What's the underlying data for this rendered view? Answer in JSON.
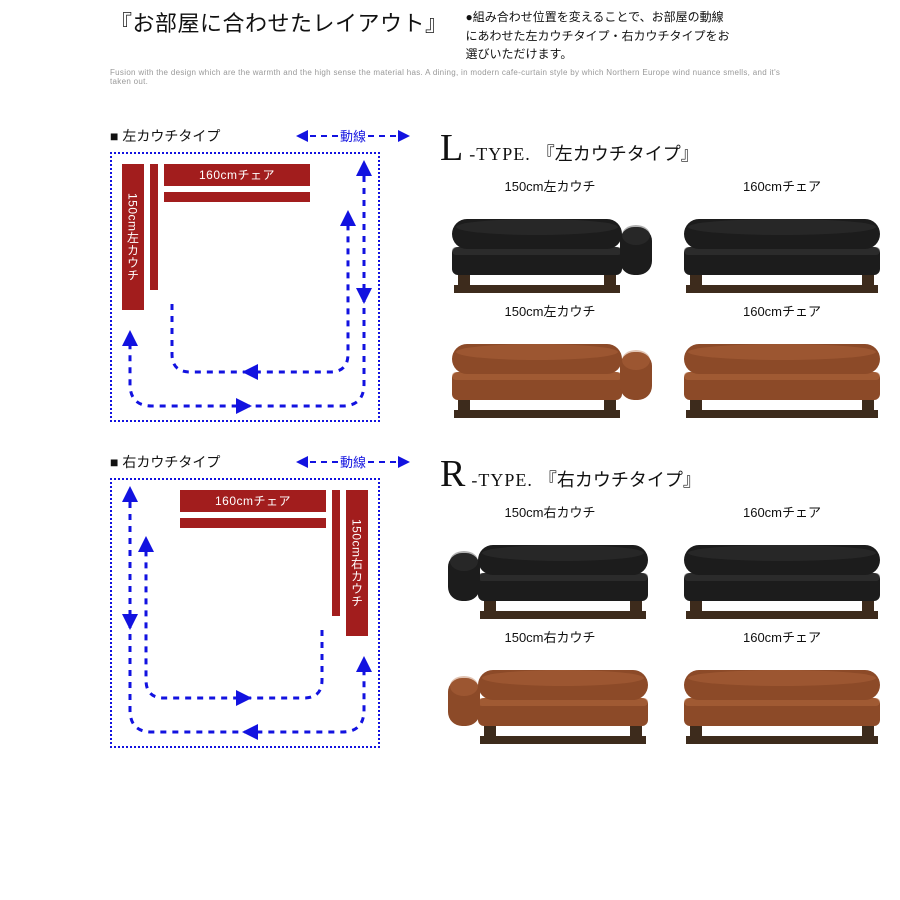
{
  "colors": {
    "accent_blue": "#1212e0",
    "furniture_red": "#a21d1d",
    "sofa_black": "#1a1a1a",
    "sofa_brown": "#8c4a28",
    "sofa_wood": "#4a3422",
    "text_muted": "#999999"
  },
  "header": {
    "title": "『お部屋に合わせたレイアウト』",
    "desc_line1": "●組み合わせ位置を変えることで、お部屋の動線",
    "desc_line2": "にあわせた左カウチタイプ・右カウチタイプをお",
    "desc_line3": "選びいただけます。",
    "subtext": "Fusion with the design which are the warmth and the high sense the material has. A dining, in modern cafe-curtain style by which Northern Europe wind nuance smells, and it's taken out."
  },
  "flow_label": "動線",
  "sections": [
    {
      "diag_title": "■ 左カウチタイプ",
      "layout_side": "left",
      "type_letter": "L",
      "type_label": "-TYPE.",
      "type_jp": "『左カウチタイプ』",
      "furniture": {
        "horizontal_label": "160cmチェア",
        "vertical_label": "150cm左カウチ"
      },
      "products": [
        {
          "name": "150cm左カウチ",
          "color": "black",
          "arm": "right"
        },
        {
          "name": "160cmチェア",
          "color": "black",
          "arm": "none"
        },
        {
          "name": "150cm左カウチ",
          "color": "brown",
          "arm": "right"
        },
        {
          "name": "160cmチェア",
          "color": "brown",
          "arm": "none"
        }
      ]
    },
    {
      "diag_title": "■ 右カウチタイプ",
      "layout_side": "right",
      "type_letter": "R",
      "type_label": "-TYPE.",
      "type_jp": "『右カウチタイプ』",
      "furniture": {
        "horizontal_label": "160cmチェア",
        "vertical_label": "150cm右カウチ"
      },
      "products": [
        {
          "name": "150cm右カウチ",
          "color": "black",
          "arm": "left"
        },
        {
          "name": "160cmチェア",
          "color": "black",
          "arm": "none"
        },
        {
          "name": "150cm右カウチ",
          "color": "brown",
          "arm": "left"
        },
        {
          "name": "160cmチェア",
          "color": "brown",
          "arm": "none"
        }
      ]
    }
  ]
}
